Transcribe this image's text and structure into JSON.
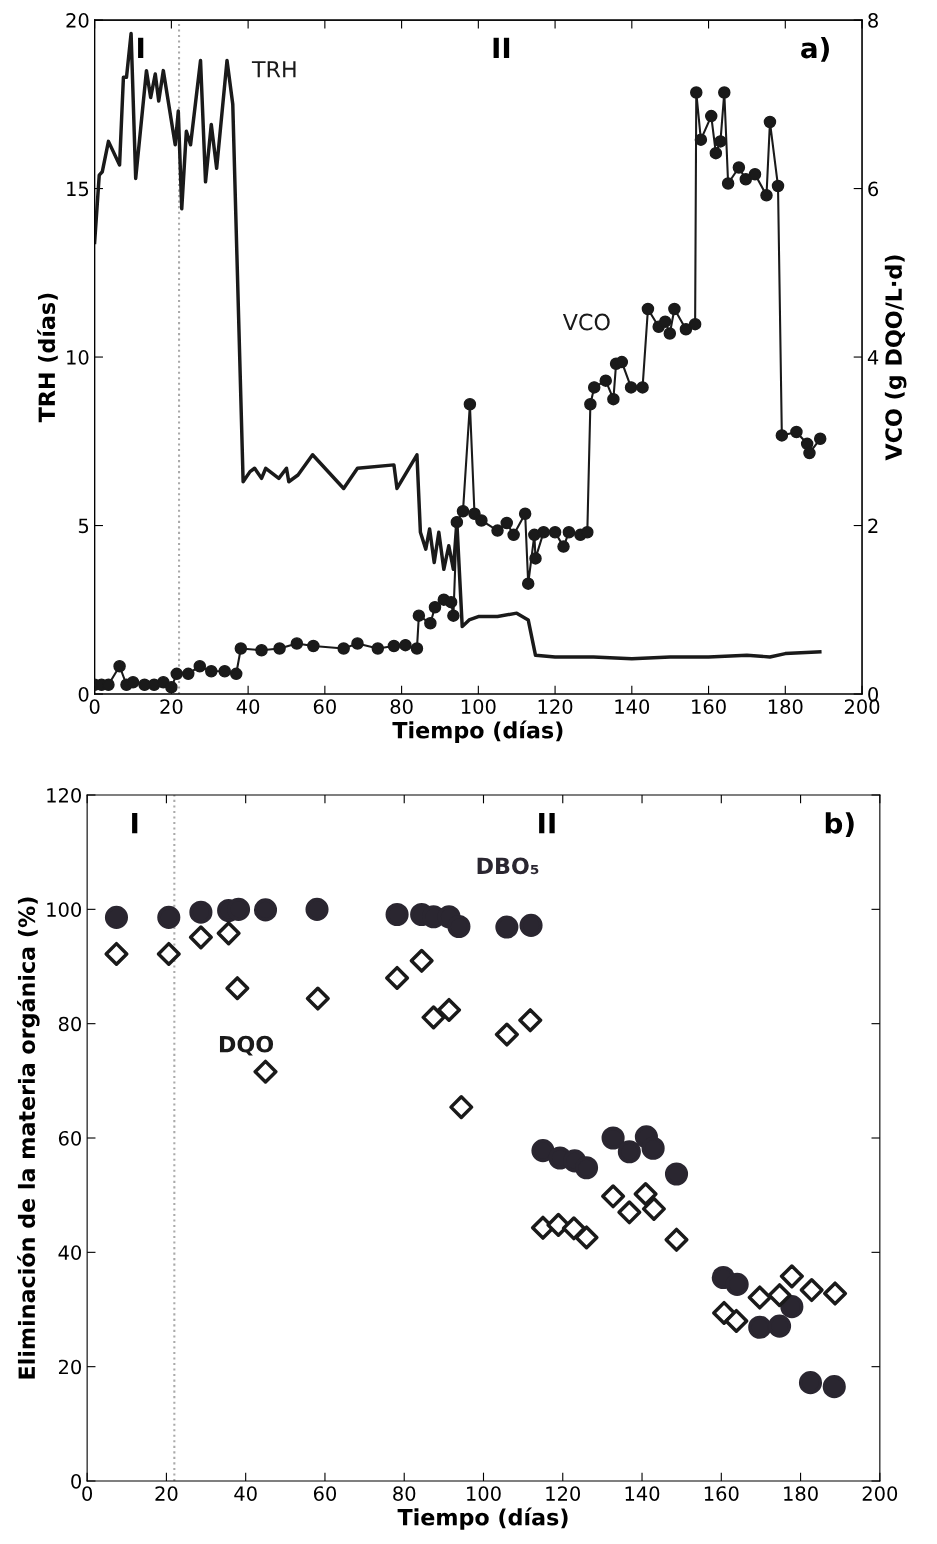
{
  "chart_data": [
    {
      "type": "line",
      "xlabel": "Tiempo (días)",
      "ylabel": "TRH (días)",
      "y2label": "VCO (g DQO/L·d)",
      "xlim": [
        0,
        200
      ],
      "xticks": [
        0,
        20,
        40,
        60,
        80,
        100,
        120,
        140,
        160,
        180,
        200
      ],
      "ylim": [
        0,
        20
      ],
      "yticks": [
        0,
        5,
        10,
        15,
        20
      ],
      "y2lim": [
        0,
        8
      ],
      "y2ticks": [
        0,
        2,
        4,
        6,
        8
      ],
      "grid": false,
      "legend": false,
      "line_style": "solid",
      "annotations": [
        "I",
        "II",
        "a)"
      ],
      "ref_lines": [
        {
          "axis": "x",
          "value": 22,
          "color": "#aaaaaa",
          "line_style": "dotted"
        }
      ],
      "series": [
        {
          "name": "TRH",
          "color": "#1a1a1a",
          "marker": "none",
          "x": [
            0,
            1.2,
            2,
            3.6,
            6.5,
            7.5,
            8.3,
            9.5,
            10.7,
            13.5,
            14.6,
            15.8,
            16.7,
            17.9,
            21,
            21.8,
            22.7,
            23.9,
            25,
            27.6,
            28.9,
            30.4,
            31.8,
            34.5,
            36,
            38.7,
            40.5,
            41.7,
            43.5,
            44.6,
            48,
            50,
            50.6,
            53,
            56.8,
            64.9,
            68.5,
            78,
            78.8,
            84,
            84.9,
            86.3,
            87.3,
            88.5,
            89.7,
            91,
            92.3,
            93.5,
            94.4,
            95.8,
            97.6,
            100,
            105,
            110,
            113,
            114.9,
            120,
            130,
            140,
            150,
            160,
            170,
            176,
            180,
            189
          ],
          "values": [
            13.4,
            15.4,
            15.5,
            16.4,
            15.7,
            18.3,
            18.3,
            19.6,
            15.3,
            18.5,
            17.7,
            18.4,
            17.6,
            18.5,
            16.3,
            17.3,
            14.4,
            16.7,
            16.3,
            18.8,
            15.2,
            16.9,
            15.6,
            18.8,
            17.5,
            6.3,
            6.6,
            6.7,
            6.4,
            6.7,
            6.4,
            6.7,
            6.3,
            6.5,
            7.1,
            6.1,
            6.7,
            6.8,
            6.1,
            7.1,
            4.8,
            4.3,
            4.9,
            3.9,
            4.8,
            3.7,
            4.4,
            3.7,
            5.1,
            2.0,
            2.2,
            2.3,
            2.3,
            2.4,
            2.2,
            1.15,
            1.1,
            1.1,
            1.05,
            1.1,
            1.1,
            1.15,
            1.1,
            1.2,
            1.25
          ]
        },
        {
          "name": "VCO",
          "color": "#1a1a1a",
          "marker": "circle",
          "axis": "y2",
          "x": [
            0,
            1.8,
            3.6,
            6.5,
            8.3,
            10,
            13,
            15.5,
            17.9,
            20,
            21.4,
            24.4,
            27.4,
            30.4,
            33.9,
            36.9,
            38.1,
            43.5,
            48.2,
            52.7,
            57,
            64.9,
            68.5,
            73.8,
            78,
            81,
            84,
            84.5,
            87.5,
            88.7,
            91,
            92.9,
            93.5,
            94.4,
            96,
            97.8,
            99,
            100.8,
            105,
            107.4,
            109.2,
            112.2,
            113,
            114.6,
            114.9,
            117,
            120,
            122.2,
            123.6,
            126.6,
            128.4,
            129.2,
            130.2,
            133.2,
            135.2,
            135.9,
            137.4,
            139.8,
            142.8,
            144.2,
            147,
            148.7,
            149.9,
            151.1,
            154.1,
            156.5,
            156.8,
            158,
            160.7,
            161.9,
            163.1,
            164.1,
            165.1,
            167.9,
            169.7,
            172.1,
            175.1,
            176,
            178.1,
            179.1,
            182.9,
            185.7,
            186.3,
            189.1
          ],
          "values": [
            0.11,
            0.11,
            0.11,
            0.33,
            0.11,
            0.14,
            0.11,
            0.11,
            0.14,
            0.08,
            0.24,
            0.24,
            0.33,
            0.27,
            0.27,
            0.24,
            0.54,
            0.52,
            0.54,
            0.6,
            0.57,
            0.54,
            0.6,
            0.54,
            0.57,
            0.58,
            0.54,
            0.93,
            0.84,
            1.03,
            1.12,
            1.09,
            0.93,
            2.04,
            2.17,
            3.44,
            2.14,
            2.06,
            1.94,
            2.03,
            1.89,
            2.14,
            1.31,
            1.89,
            1.61,
            1.92,
            1.92,
            1.75,
            1.92,
            1.89,
            1.92,
            3.44,
            3.64,
            3.72,
            3.5,
            3.92,
            3.94,
            3.64,
            3.64,
            4.57,
            4.36,
            4.42,
            4.28,
            4.57,
            4.33,
            4.39,
            7.14,
            6.58,
            6.86,
            6.42,
            6.56,
            7.14,
            6.06,
            6.25,
            6.11,
            6.17,
            5.92,
            6.79,
            6.03,
            3.07,
            3.11,
            2.97,
            2.86,
            3.03
          ]
        }
      ]
    },
    {
      "type": "scatter",
      "xlabel": "Tiempo (días)",
      "ylabel": "Eliminación de la materia orgánica (%)",
      "xlim": [
        0,
        200
      ],
      "xticks": [
        0,
        20,
        40,
        60,
        80,
        100,
        120,
        140,
        160,
        180,
        200
      ],
      "ylim": [
        0,
        120
      ],
      "yticks": [
        0,
        20,
        40,
        60,
        80,
        100,
        120
      ],
      "grid": false,
      "legend": false,
      "annotations": [
        "I",
        "II",
        "b)"
      ],
      "ref_lines": [
        {
          "axis": "x",
          "value": 22,
          "color": "#aaaaaa",
          "line_style": "dotted"
        }
      ],
      "series": [
        {
          "name": "DBO₅",
          "color": "#2a2630",
          "marker": "circle",
          "x": [
            7.4,
            20.6,
            28.7,
            35.7,
            38.2,
            45,
            58,
            78.2,
            84.4,
            87.4,
            91.3,
            93.8,
            105.9,
            112,
            115,
            119.3,
            123,
            126,
            132.7,
            136.8,
            141.1,
            142.8,
            148.7,
            160.5,
            164,
            169.7,
            174.7,
            177.8,
            182.5,
            188.5
          ],
          "values": [
            98.6,
            98.6,
            99.5,
            99.8,
            100,
            99.9,
            100,
            99.1,
            99.1,
            98.7,
            98.7,
            97.0,
            96.9,
            97.2,
            57.8,
            56.5,
            56.0,
            54.8,
            60.0,
            57.6,
            60.2,
            58.2,
            53.7,
            35.6,
            34.4,
            26.9,
            27.1,
            30.5,
            17.2,
            16.5
          ]
        },
        {
          "name": "DQO",
          "color": "#1a1a1a",
          "marker": "diamond",
          "x": [
            7.4,
            20.6,
            28.7,
            35.7,
            37.9,
            45,
            58.2,
            78.2,
            84.4,
            87.4,
            91.3,
            94.4,
            105.9,
            111.8,
            115,
            118.9,
            122.8,
            126,
            132.7,
            136.8,
            140.9,
            143,
            148.7,
            160.7,
            163.8,
            169.7,
            174.7,
            177.8,
            182.8,
            188.7
          ],
          "values": [
            92.2,
            92.2,
            95.1,
            95.8,
            86.2,
            71.6,
            84.4,
            88.0,
            91.0,
            81.1,
            82.4,
            65.4,
            78.1,
            80.6,
            44.3,
            44.8,
            44.2,
            42.6,
            49.8,
            47.0,
            50.2,
            47.6,
            42.2,
            29.4,
            28.0,
            32.1,
            32.5,
            35.8,
            33.4,
            32.8
          ]
        }
      ]
    }
  ]
}
